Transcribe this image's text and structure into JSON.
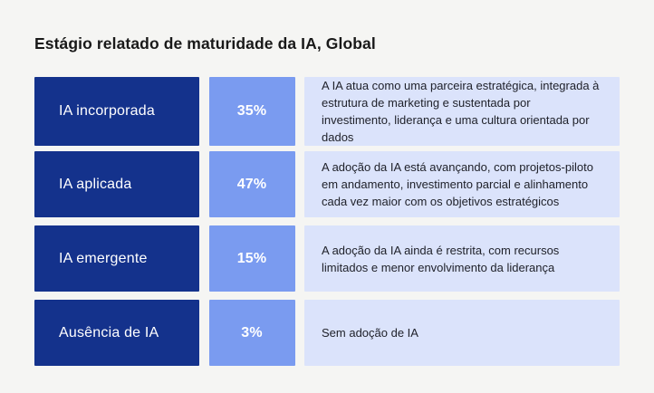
{
  "title": "Estágio relatado de maturidade da IA, Global",
  "colors": {
    "page_background": "#f5f5f3",
    "stage_box": "#14328c",
    "percent_box": "#7a9bf0",
    "description_box": "#dbe3fb",
    "stage_text": "#ffffff",
    "percent_text": "#ffffff",
    "title_text": "#191919",
    "description_text": "#20222b"
  },
  "rows": [
    {
      "label": "IA incorporada",
      "percent": "35%",
      "description": "A IA atua como uma parceira estratégica, integrada à estrutura de marketing e sustentada por investimento, liderança e uma cultura orientada por dados"
    },
    {
      "label": "IA aplicada",
      "percent": "47%",
      "description": "A adoção da IA está avançando, com projetos-piloto em andamento, investimento parcial e alinhamento cada vez maior com os objetivos estratégicos"
    },
    {
      "label": "IA emergente",
      "percent": "15%",
      "description": "A adoção da IA ainda é restrita, com recursos limitados e menor envolvimento da liderança"
    },
    {
      "label": "Ausência de IA",
      "percent": "3%",
      "description": "Sem adoção de IA"
    }
  ],
  "chart_data": {
    "type": "table",
    "title": "Estágio relatado de maturidade da IA, Global",
    "categories": [
      "IA incorporada",
      "IA aplicada",
      "IA emergente",
      "Ausência de IA"
    ],
    "values": [
      35,
      47,
      15,
      3
    ],
    "unit": "%",
    "descriptions": [
      "A IA atua como uma parceira estratégica, integrada à estrutura de marketing e sustentada por investimento, liderança e uma cultura orientada por dados",
      "A adoção da IA está avançando, com projetos-piloto em andamento, investimento parcial e alinhamento cada vez maior com os objetivos estratégicos",
      "A adoção da IA ainda é restrita, com recursos limitados e menor envolvimento da liderança",
      "Sem adoção de IA"
    ],
    "legend": false,
    "grid": false
  }
}
